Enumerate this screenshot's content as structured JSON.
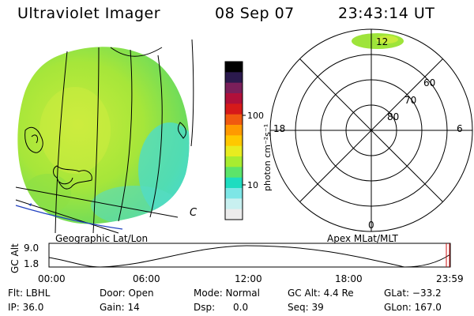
{
  "header": {
    "title": "Ultraviolet Imager",
    "date": "08 Sep 07",
    "time": "23:43:14 UT"
  },
  "left_panel": {
    "caption": "Geographic Lat/Lon",
    "corner_glyph": "C"
  },
  "colorbar": {
    "unit_label": "photon cm⁻²s⁻¹",
    "ticks": [
      "100",
      "10"
    ],
    "colors": [
      "#000000",
      "#2b1a4d",
      "#7a1f5a",
      "#b0103a",
      "#d61a1a",
      "#f05a10",
      "#ff9a00",
      "#ffc800",
      "#e8ec20",
      "#a8ec30",
      "#5ce46a",
      "#1edcc0",
      "#7de6e6",
      "#c8f0f0",
      "#ececec"
    ]
  },
  "polar_panel": {
    "caption": "Apex MLat/MLT",
    "mlt_labels": {
      "top": "12",
      "left": "18",
      "right": "6",
      "bottom": "0"
    },
    "lat_labels": [
      "60",
      "70",
      "80"
    ]
  },
  "timeline": {
    "y_axis_label": "GC Alt",
    "y_ticks": [
      "9.0",
      "1.8"
    ],
    "x_ticks": [
      "00:00",
      "06:00",
      "12:00",
      "18:00",
      "23:59"
    ]
  },
  "status": {
    "row1": {
      "flt": "Flt: LBHL",
      "door": "Door: Open",
      "mode": "Mode: Normal",
      "gc_alt": "GC Alt: 4.4 Re",
      "glat": "GLat: −33.2"
    },
    "row2": {
      "ip": "IP: 36.0",
      "gain": "Gain: 14",
      "dsp": "Dsp:      0.0",
      "seq": "Seq: 39",
      "glon": "GLon: 167.0"
    }
  },
  "accent_colors": {
    "aurora_green": "#9ee43a",
    "aurora_cyan": "#44dcd8",
    "coast_blue": "#2040c0",
    "marker_red": "#d01010"
  }
}
